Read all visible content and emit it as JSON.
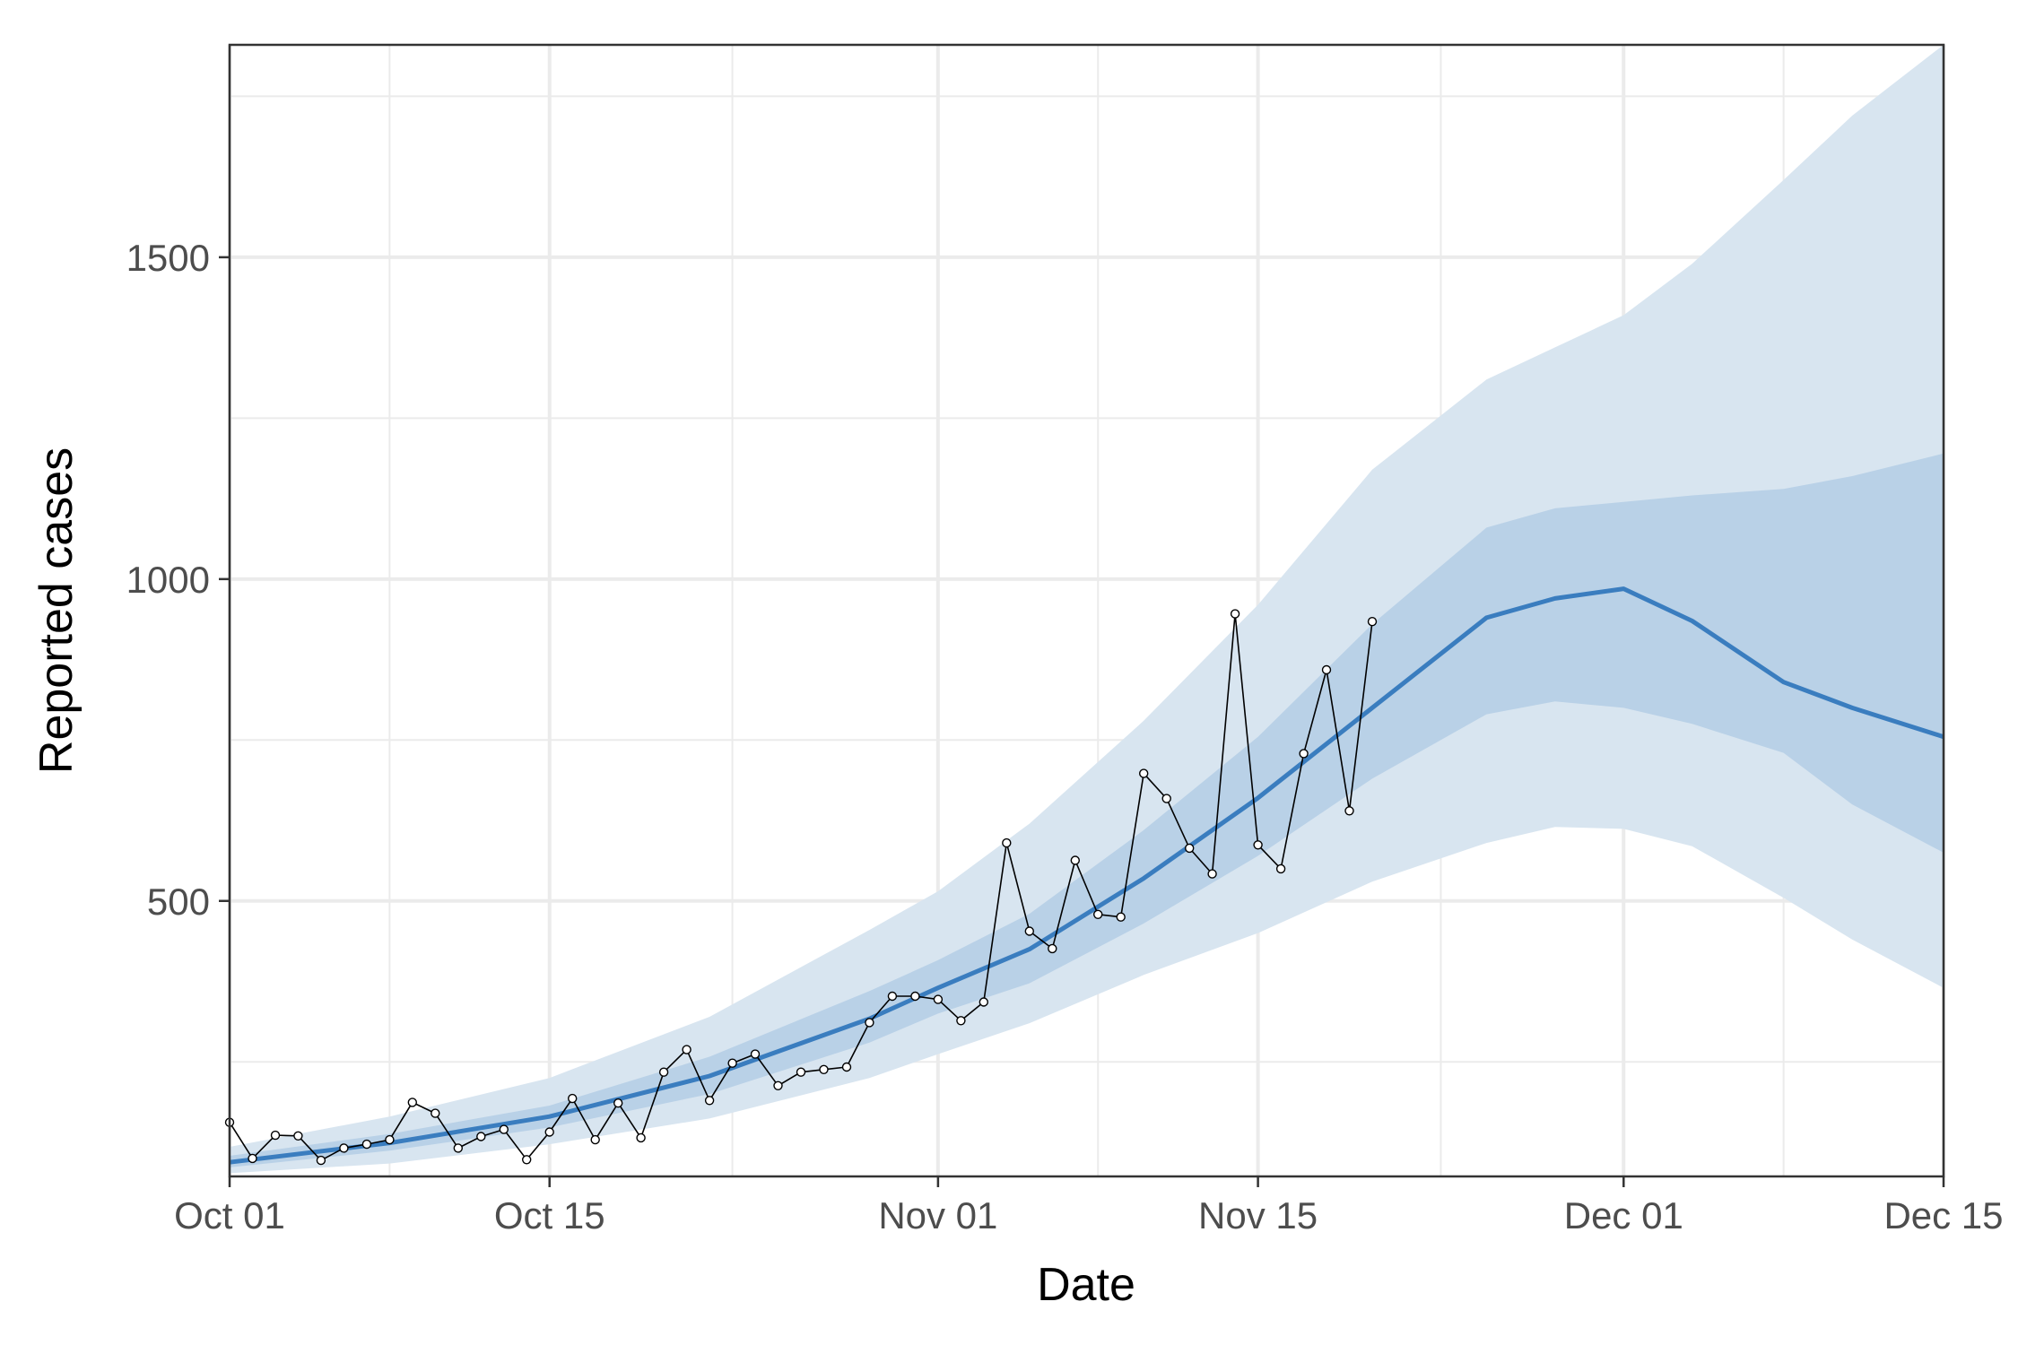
{
  "chart_data": {
    "type": "line",
    "title": "",
    "xlabel": "Date",
    "ylabel": "Reported cases",
    "x_start": "2020-10-01",
    "x_end": "2020-12-15",
    "xlim": [
      "2020-10-01",
      "2020-12-15"
    ],
    "ylim": [
      72,
      1830
    ],
    "x_ticks": [
      {
        "date": "2020-10-01",
        "label": "Oct 01"
      },
      {
        "date": "2020-10-15",
        "label": "Oct 15"
      },
      {
        "date": "2020-11-01",
        "label": "Nov 01"
      },
      {
        "date": "2020-11-15",
        "label": "Nov 15"
      },
      {
        "date": "2020-12-01",
        "label": "Dec 01"
      },
      {
        "date": "2020-12-15",
        "label": "Dec 15"
      }
    ],
    "x_minor_ticks": [
      "2020-10-08",
      "2020-10-23",
      "2020-11-08",
      "2020-11-23",
      "2020-12-08"
    ],
    "y_ticks": [
      500,
      1000,
      1500
    ],
    "y_minor_ticks": [
      250,
      750,
      1250,
      1750
    ],
    "grid": true,
    "legend": "none",
    "colors": {
      "median_line": "#3a7dbf",
      "ci_90": "#d8e5f0",
      "ci_50": "#b9d1e7",
      "observed": "#000000",
      "panel_border": "#333333",
      "grid": "#ebebeb"
    },
    "series": [
      {
        "kind": "observed",
        "dates": [
          "2020-10-01",
          "2020-10-02",
          "2020-10-03",
          "2020-10-04",
          "2020-10-05",
          "2020-10-06",
          "2020-10-07",
          "2020-10-08",
          "2020-10-09",
          "2020-10-10",
          "2020-10-11",
          "2020-10-12",
          "2020-10-13",
          "2020-10-14",
          "2020-10-15",
          "2020-10-16",
          "2020-10-17",
          "2020-10-18",
          "2020-10-19",
          "2020-10-20",
          "2020-10-21",
          "2020-10-22",
          "2020-10-23",
          "2020-10-24",
          "2020-10-25",
          "2020-10-26",
          "2020-10-27",
          "2020-10-28",
          "2020-10-29",
          "2020-10-30",
          "2020-10-31",
          "2020-11-01",
          "2020-11-02",
          "2020-11-03",
          "2020-11-04",
          "2020-11-05",
          "2020-11-06",
          "2020-11-07",
          "2020-11-08",
          "2020-11-09",
          "2020-11-10",
          "2020-11-11",
          "2020-11-12",
          "2020-11-13",
          "2020-11-14",
          "2020-11-15",
          "2020-11-16",
          "2020-11-17",
          "2020-11-18",
          "2020-11-19",
          "2020-11-20"
        ],
        "values": [
          156,
          100,
          136,
          135,
          97,
          116,
          122,
          129,
          187,
          170,
          116,
          134,
          145,
          98,
          141,
          193,
          129,
          186,
          132,
          234,
          269,
          190,
          248,
          262,
          213,
          234,
          238,
          242,
          311,
          352,
          352,
          347,
          314,
          343,
          590,
          453,
          426,
          563,
          479,
          475,
          698,
          659,
          582,
          542,
          946,
          587,
          550,
          729,
          859,
          640,
          934
        ]
      },
      {
        "kind": "median",
        "dates": [
          "2020-10-01",
          "2020-10-08",
          "2020-10-15",
          "2020-10-22",
          "2020-10-29",
          "2020-11-01",
          "2020-11-05",
          "2020-11-10",
          "2020-11-15",
          "2020-11-20",
          "2020-11-25",
          "2020-11-28",
          "2020-12-01",
          "2020-12-04",
          "2020-12-08",
          "2020-12-11",
          "2020-12-15"
        ],
        "values": [
          94,
          124,
          165,
          228,
          317,
          365,
          425,
          535,
          660,
          800,
          940,
          970,
          985,
          935,
          840,
          800,
          755
        ]
      },
      {
        "kind": "interval_50",
        "dates": [
          "2020-10-01",
          "2020-10-08",
          "2020-10-15",
          "2020-10-22",
          "2020-10-29",
          "2020-11-01",
          "2020-11-05",
          "2020-11-10",
          "2020-11-15",
          "2020-11-20",
          "2020-11-25",
          "2020-11-28",
          "2020-12-01",
          "2020-12-04",
          "2020-12-08",
          "2020-12-11",
          "2020-12-15"
        ],
        "lower": [
          86,
          112,
          148,
          200,
          280,
          325,
          372,
          465,
          570,
          690,
          790,
          810,
          800,
          775,
          730,
          650,
          575
        ],
        "upper": [
          104,
          138,
          182,
          258,
          360,
          408,
          480,
          610,
          755,
          930,
          1080,
          1110,
          1120,
          1130,
          1140,
          1160,
          1195
        ]
      },
      {
        "kind": "interval_90",
        "dates": [
          "2020-10-01",
          "2020-10-08",
          "2020-10-15",
          "2020-10-22",
          "2020-10-29",
          "2020-11-01",
          "2020-11-05",
          "2020-11-10",
          "2020-11-15",
          "2020-11-20",
          "2020-11-25",
          "2020-11-28",
          "2020-12-01",
          "2020-12-04",
          "2020-12-08",
          "2020-12-11",
          "2020-12-15"
        ],
        "lower": [
          77,
          92,
          122,
          162,
          225,
          262,
          310,
          385,
          450,
          530,
          590,
          615,
          612,
          585,
          505,
          440,
          365
        ],
        "upper": [
          118,
          165,
          225,
          320,
          455,
          515,
          620,
          780,
          960,
          1170,
          1310,
          1360,
          1410,
          1490,
          1620,
          1720,
          1830
        ]
      }
    ]
  }
}
